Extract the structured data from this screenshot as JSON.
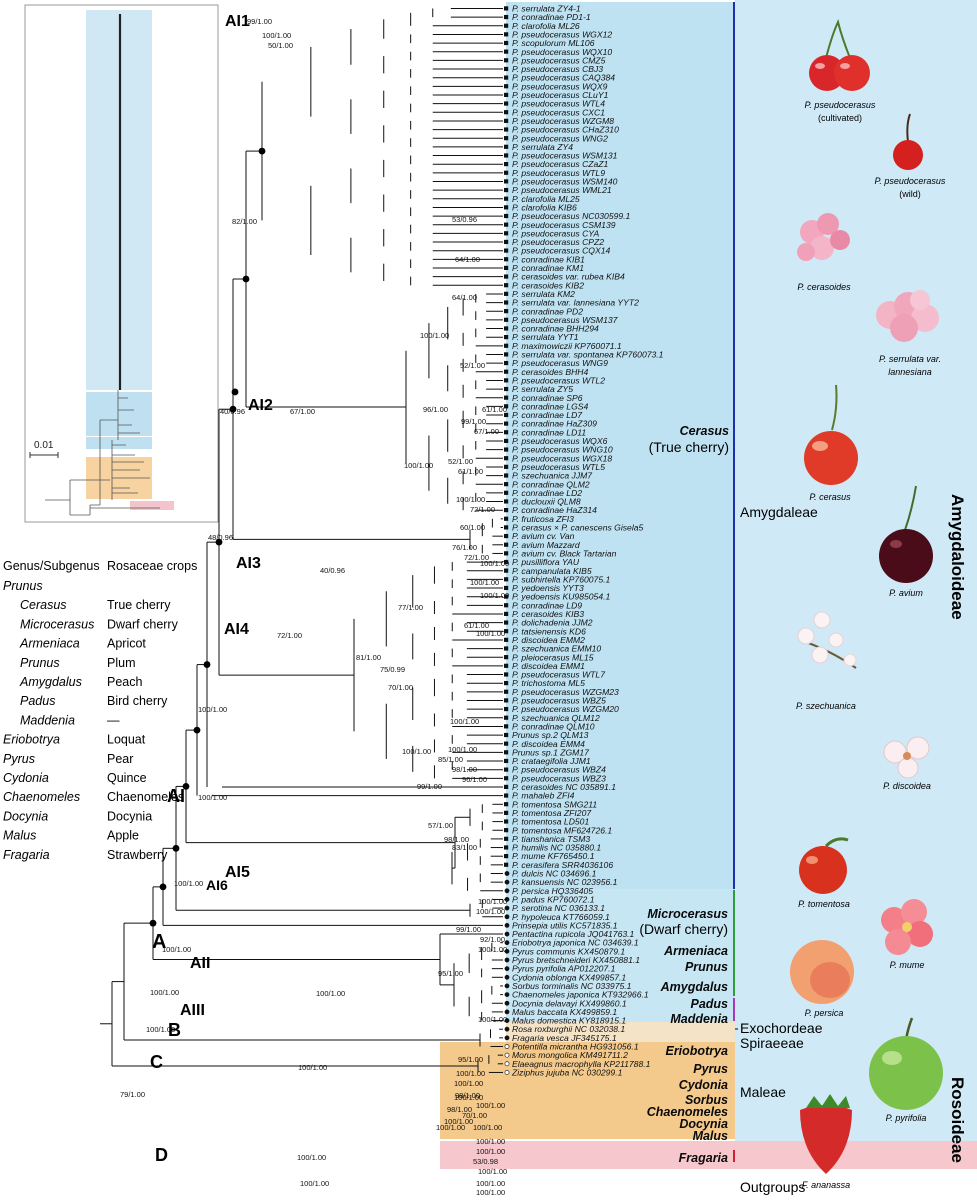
{
  "taxa": [
    "P. serrulata ZY4-1",
    "P. conradinae PD1-1",
    "P. clarofolia ML26",
    "P. pseudocerasus WGX12",
    "P. scopulorum ML106",
    "P. pseudocerasus WQX10",
    "P. pseudocerasus CMZ5",
    "P. pseudocerasus CBJ3",
    "P. pseudocerasus CAQ384",
    "P. pseudocerasus WQX9",
    "P. pseudocerasus CLuY1",
    "P. pseudocerasus WTL4",
    "P. pseudocerasus CXC1",
    "P. pseudocerasus WZGM8",
    "P. pseudocerasus CHaZ310",
    "P. pseudocerasus WNG2",
    "P. serrulata ZY4",
    "P. pseudocerasus WSM131",
    "P. pseudocerasus CZaZ1",
    "P. pseudocerasus WTL9",
    "P. pseudocerasus WSM140",
    "P. pseudocerasus WML21",
    "P. clarofolia ML25",
    "P. clarofolia KIB6",
    "P. pseudocerasus NC030599.1",
    "P. pseudocerasus CSM139",
    "P. pseudocerasus CYA",
    "P. pseudocerasus CPZ2",
    "P. pseudocerasus CQX14",
    "P. conradinae KIB1",
    "P. conradinae KM1",
    "P. cerasoides var. rubea KIB4",
    "P. cerasoides KIB2",
    "P. serrulata KM2",
    "P. serrulata var. lannesiana YYT2",
    "P. conradinae PD2",
    "P. pseudocerasus WSM137",
    "P. conradinae BHH294",
    "P. serrulata YYT1",
    "P. maximowiczii KP760071.1",
    "P. serrulata var. spontanea KP760073.1",
    "P. pseudocerasus WNG9",
    "P. cerasoides BHH4",
    "P. pseudocerasus WTL2",
    "P. serrulata ZY5",
    "P. conradinae SP6",
    "P. conradinae LGS4",
    "P. conradinae LD7",
    "P. conradinae HaZ309",
    "P. conradinae LD11",
    "P. pseudocerasus WQX6",
    "P. pseudocerasus WNG10",
    "P. pseudocerasus WGX18",
    "P. pseudocerasus WTL5",
    "P. szechuanica JJM7",
    "P. conradinae QLM2",
    "P. conradinae LD2",
    "P. duclouxii QLM8",
    "P. conradinae HaZ314",
    "P. fruticosa ZFI3",
    "P. cerasus × P. canescens Gisela5",
    "P. avium cv. Van",
    "P. avium Mazzard",
    "P. avium cv. Black Tartarian",
    "P. pusilliflora YAU",
    "P. campanulata KIB5",
    "P. subhirtella KP760075.1",
    "P. yedoensis YYT3",
    "P. yedoensis KU985054.1",
    "P. conradinae LD9",
    "P. cerasoides KIB3",
    "P. dolichadenia JJM2",
    "P. tatsienensis KD6",
    "P. discoidea EMM2",
    "P. szechuanica EMM10",
    "P. pleiocerasus ML15",
    "P. discoidea EMM1",
    "P. pseudocerasus WTL7",
    "P. trichostoma ML5",
    "P. pseudocerasus WZGM23",
    "P. pseudocerasus WBZ5",
    "P. pseudocerasus WZGM20",
    "P. szechuanica QLM12",
    "P. conradinae QLM10",
    "Prunus sp.2 QLM13",
    "P. discoidea EMM4",
    "Prunus sp.1 ZGM17",
    "P. crataegifolia JJM1",
    "P. pseudocerasus WBZ4",
    "P. pseudocerasus WBZ3",
    "P. cerasoides NC 035891.1",
    "P. mahaleb ZFI4",
    "P. tomentosa SMG211",
    "P. tomentosa ZFI207",
    "P. tomentosa LD501",
    "P. tomentosa MF624726.1",
    "P. tianshanica TSM3",
    "P. humilis NC 035880.1",
    "P. mume KF765450.1",
    "P. cerasifera SRR4036106",
    "P. dulcis NC 034696.1",
    "P. kansuensis NC 023956.1",
    "P. persica HQ336405",
    "P. padus KP760072.1",
    "P. serotina NC 036133.1",
    "P. hypoleuca KT766059.1",
    "Prinsepia utilis KC571835.1",
    "Pentactina rupicola JQ041763.1",
    "Eriobotrya japonica NC 034639.1",
    "Pyrus communis KX450879.1",
    "Pyrus bretschneideri KX450881.1",
    "Pyrus pyrifolia AP012207.1",
    "Cydonia oblonga KX499857.1",
    "Sorbus torminalis NC 033975.1",
    "Chaenomeles japonica KT932966.1",
    "Docynia delavayi KX499860.1",
    "Malus baccata KX499859.1",
    "Malus domestica KY818915.1",
    "Rosa roxburghii NC 032038.1",
    "Fragaria vesca JF345175.1",
    "Potentilla micrantha HG931056.1",
    "Morus mongolica KM491711.2",
    "Elaeagnus macrophylla KP211788.1",
    "Ziziphus jujuba NC 030299.1"
  ],
  "supports": [
    "99/1.00",
    "100/1.00",
    "50/1.00",
    "82/1.00",
    "53/0.96",
    "64/1.00",
    "64/1.00",
    "40/0.96",
    "67/1.00",
    "100/1.00",
    "52/1.00",
    "96/1.00",
    "61/1.00",
    "99/1.00",
    "67/1.00",
    "52/1.00",
    "61/1.00",
    "100/1.00",
    "100/1.00",
    "72/1.00",
    "60/1.00",
    "76/1.00",
    "72/1.00",
    "100/1.00",
    "48/0.96",
    "40/0.96",
    "100/1.00",
    "100/1.00",
    "77/1.00",
    "61/1.00",
    "100/1.00",
    "72/1.00",
    "81/1.00",
    "75/0.99",
    "70/1.00",
    "100/1.00",
    "100/1.00",
    "100/1.00",
    "85/1.00",
    "98/1.00",
    "96/1.00",
    "99/1.00",
    "57/1.00",
    "98/1.00",
    "83/1.00",
    "100/1.00",
    "100/1.00",
    "100/1.00",
    "100/1.00",
    "100/1.00",
    "100/1.00",
    "99/1.00",
    "92/1.00",
    "100/1.00",
    "95/1.00",
    "100/1.00",
    "100/1.00",
    "100/1.00",
    "100/1.00",
    "95/1.00",
    "100/1.00",
    "79/1.00",
    "100/1.00",
    "98/1.00",
    "98/1.00",
    "100/1.00",
    "100/1.00",
    "100/1.00",
    "70/1.00",
    "100/1.00",
    "100/1.00",
    "53/0.98",
    "100/1.00",
    "100/1.00",
    "100/1.00",
    "100/1.00",
    "100/1.00",
    "100/1.00",
    "100/1.00",
    "100/1.00"
  ],
  "clades": {
    "AI1": "AI1",
    "AI2": "AI2",
    "AI3": "AI3",
    "AI4": "AI4",
    "AI5": "AI5",
    "AI6": "AI6",
    "AI": "AI",
    "AII": "AII",
    "AIII": "AIII",
    "A": "A",
    "B": "B",
    "C": "C",
    "D": "D"
  },
  "groups": {
    "cerasus": "Cerasus",
    "cerasus_sub": "(True cherry)",
    "microcerasus": "Microcerasus",
    "microcerasus_sub": "(Dwarf cherry)",
    "armeniaca": "Armeniaca",
    "prunus": "Prunus",
    "amygdalus": "Amygdalus",
    "padus": "Padus",
    "maddenia": "Maddenia",
    "eriobotrya": "Eriobotrya",
    "pyrus": "Pyrus",
    "cydonia": "Cydonia",
    "sorbus": "Sorbus",
    "chaenomeles": "Chaenomeles",
    "docynia": "Docynia",
    "malus": "Malus",
    "fragaria": "Fragaria"
  },
  "tribes": {
    "amygdaleae": "Amygdaleae",
    "exochordeae": "Exochordeae",
    "spiraeeae": "Spiraeeae",
    "maleae": "Maleae",
    "outgroups": "Outgroups"
  },
  "subfamilies": {
    "amygdaloideae": "Amygdaloideae",
    "rosoideae": "Rosoideae"
  },
  "legend": {
    "header_left": "Genus/Subgenus",
    "header_right": "Rosaceae crops",
    "rows": [
      {
        "genus": "Prunus",
        "crop": ""
      },
      {
        "genus": "Cerasus",
        "crop": "True cherry"
      },
      {
        "genus": "Microcerasus",
        "crop": "Dwarf cherry"
      },
      {
        "genus": "Armeniaca",
        "crop": "Apricot"
      },
      {
        "genus": "Prunus",
        "crop": "Plum"
      },
      {
        "genus": "Amygdalus",
        "crop": "Peach"
      },
      {
        "genus": "Padus",
        "crop": "Bird cherry"
      },
      {
        "genus": "Maddenia",
        "crop": "—"
      },
      {
        "genus": "Eriobotrya",
        "crop": "Loquat"
      },
      {
        "genus": "Pyrus",
        "crop": "Pear"
      },
      {
        "genus": "Cydonia",
        "crop": "Quince"
      },
      {
        "genus": "Chaenomeles",
        "crop": "Chaenomeles"
      },
      {
        "genus": "Docynia",
        "crop": "Docynia"
      },
      {
        "genus": "Malus",
        "crop": "Apple"
      },
      {
        "genus": "Fragaria",
        "crop": "Strawberry"
      }
    ]
  },
  "inset": {
    "scale_label": "0.01"
  },
  "photos": [
    {
      "id": "pseudocerasus-cult",
      "species": "P. pseudocerasus",
      "note": "(cultivated)"
    },
    {
      "id": "pseudocerasus-wild",
      "species": "P. pseudocerasus",
      "note": "(wild)"
    },
    {
      "id": "cerasoides",
      "species": "P. cerasoides",
      "note": ""
    },
    {
      "id": "lannesiana",
      "species": "P. serrulata var.",
      "note": "lannesiana"
    },
    {
      "id": "cerasus",
      "species": "P. cerasus",
      "note": ""
    },
    {
      "id": "avium",
      "species": "P. avium",
      "note": ""
    },
    {
      "id": "szechuanica",
      "species": "P. szechuanica",
      "note": ""
    },
    {
      "id": "discoidea",
      "species": "P. discoidea",
      "note": ""
    },
    {
      "id": "tomentosa",
      "species": "P. tomentosa",
      "note": ""
    },
    {
      "id": "mume",
      "species": "P. mume",
      "note": ""
    },
    {
      "id": "persica",
      "species": "P. persica",
      "note": ""
    },
    {
      "id": "pyrifolia",
      "species": "P. pyrifolia",
      "note": ""
    },
    {
      "id": "ananassa",
      "species": "F. ananassa",
      "note": ""
    }
  ],
  "colors": {
    "amygdaloideae_bg": "#cfeaf6",
    "cerasus_bg": "#bfe2f2",
    "maleae_bg": "#f4c98c",
    "exo_bg": "#f5e3c8",
    "fragaria_bg": "#f6c7cc",
    "cerasus_bar": "#1c2fb0",
    "micro_bar": "#2e9e3c",
    "padus_bar": "#a53bb8"
  }
}
